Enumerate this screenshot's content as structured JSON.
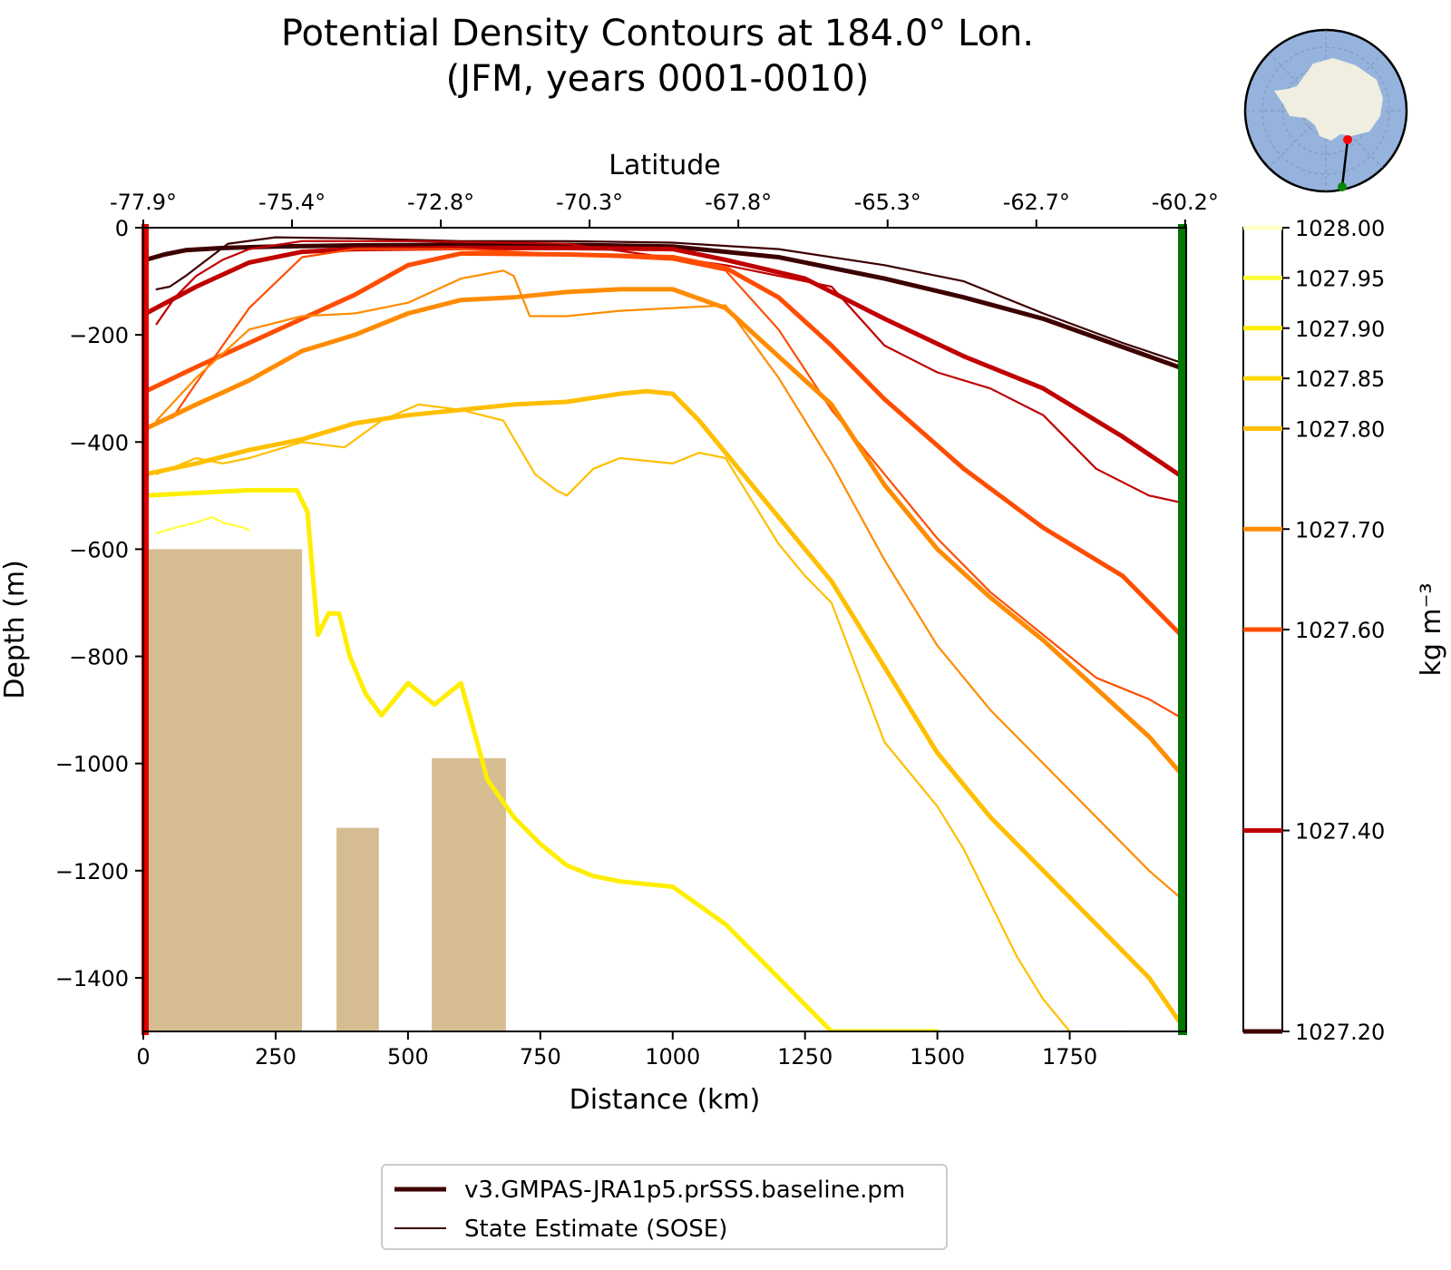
{
  "chart_data": {
    "type": "line",
    "title_line1": "Potential Density Contours at 184.0° Lon.",
    "title_line2": "(JFM, years 0001-0010)",
    "xlabel": "Distance (km)",
    "ylabel": "Depth (m)",
    "top_xlabel": "Latitude",
    "colorbar_label": "kg m⁻³",
    "xlim": [
      0,
      1970
    ],
    "ylim": [
      -1500,
      0
    ],
    "x_ticks": [
      0,
      250,
      500,
      750,
      1000,
      1250,
      1500,
      1750
    ],
    "y_ticks": [
      0,
      -200,
      -400,
      -600,
      -800,
      -1000,
      -1200,
      -1400
    ],
    "x_tick_labels": [
      "0",
      "250",
      "500",
      "750",
      "1000",
      "1250",
      "1500",
      "1750"
    ],
    "y_tick_labels": [
      "0",
      "−200",
      "−400",
      "−600",
      "−800",
      "−1000",
      "−1200",
      "−1400"
    ],
    "lat_ticks": [
      {
        "x": 0,
        "label": "-77.9°"
      },
      {
        "x": 281,
        "label": "-75.4°"
      },
      {
        "x": 562,
        "label": "-72.8°"
      },
      {
        "x": 843,
        "label": "-70.3°"
      },
      {
        "x": 1124,
        "label": "-67.8°"
      },
      {
        "x": 1406,
        "label": "-65.3°"
      },
      {
        "x": 1687,
        "label": "-62.7°"
      },
      {
        "x": 1968,
        "label": "-60.2°"
      }
    ],
    "contour_levels": [
      {
        "value": 1027.2,
        "label": "1027.20",
        "color": "#3d0000"
      },
      {
        "value": 1027.4,
        "label": "1027.40",
        "color": "#c00000"
      },
      {
        "value": 1027.6,
        "label": "1027.60",
        "color": "#ff4d00"
      },
      {
        "value": 1027.7,
        "label": "1027.70",
        "color": "#ff8c00"
      },
      {
        "value": 1027.8,
        "label": "1027.80",
        "color": "#ffbf00"
      },
      {
        "value": 1027.85,
        "label": "1027.85",
        "color": "#ffd800"
      },
      {
        "value": 1027.9,
        "label": "1027.90",
        "color": "#ffee00"
      },
      {
        "value": 1027.95,
        "label": "1027.95",
        "color": "#ffff3a"
      },
      {
        "value": 1028.0,
        "label": "1028.00",
        "color": "#ffffc8"
      }
    ],
    "series": [
      {
        "name": "v3.GMPAS-JRA1p5.prSSS.baseline.pm",
        "level": 1027.2,
        "style": "thick",
        "x": [
          5,
          40,
          80,
          150,
          250,
          400,
          600,
          800,
          1000,
          1200,
          1400,
          1550,
          1700,
          1970
        ],
        "y": [
          -60,
          -50,
          -42,
          -38,
          -35,
          -33,
          -32,
          -32,
          -35,
          -55,
          -95,
          -130,
          -170,
          -265
        ]
      },
      {
        "name": "State Estimate (SOSE)",
        "level": 1027.2,
        "style": "thin",
        "x": [
          25,
          50,
          80,
          120,
          160,
          250,
          400,
          600,
          800,
          1000,
          1200,
          1400,
          1550,
          1700,
          1850,
          1970
        ],
        "y": [
          -115,
          -110,
          -90,
          -60,
          -30,
          -18,
          -20,
          -25,
          -25,
          -28,
          -40,
          -70,
          -100,
          -160,
          -215,
          -255
        ]
      },
      {
        "level": 1027.4,
        "style": "thick",
        "x": [
          5,
          100,
          200,
          300,
          400,
          600,
          800,
          1000,
          1100,
          1250,
          1400,
          1550,
          1700,
          1850,
          1970
        ],
        "y": [
          -160,
          -110,
          -65,
          -45,
          -40,
          -38,
          -38,
          -40,
          -60,
          -95,
          -170,
          -240,
          -300,
          -390,
          -470
        ]
      },
      {
        "level": 1027.4,
        "style": "thin",
        "x": [
          25,
          60,
          100,
          150,
          200,
          300,
          500,
          800,
          1100,
          1300,
          1400,
          1500,
          1600,
          1700,
          1800,
          1900,
          1970
        ],
        "y": [
          -180,
          -130,
          -90,
          -60,
          -40,
          -25,
          -25,
          -30,
          -70,
          -110,
          -220,
          -270,
          -300,
          -350,
          -450,
          -500,
          -515
        ]
      },
      {
        "level": 1027.6,
        "style": "thick",
        "x": [
          5,
          100,
          200,
          300,
          400,
          500,
          600,
          800,
          1000,
          1100,
          1200,
          1300,
          1400,
          1550,
          1700,
          1850,
          1970
        ],
        "y": [
          -305,
          -260,
          -215,
          -170,
          -125,
          -70,
          -48,
          -50,
          -55,
          -75,
          -130,
          -220,
          -320,
          -450,
          -560,
          -650,
          -770
        ]
      },
      {
        "level": 1027.6,
        "style": "thin",
        "x": [
          55,
          100,
          150,
          200,
          300,
          400,
          600,
          800,
          1000,
          1100,
          1200,
          1300,
          1400,
          1500,
          1600,
          1700,
          1800,
          1900,
          1970
        ],
        "y": [
          -355,
          -290,
          -220,
          -150,
          -55,
          -40,
          -40,
          -50,
          -60,
          -80,
          -190,
          -340,
          -460,
          -580,
          -680,
          -760,
          -840,
          -880,
          -920
        ]
      },
      {
        "level": 1027.7,
        "style": "thick",
        "x": [
          5,
          100,
          200,
          300,
          400,
          500,
          600,
          700,
          800,
          900,
          1000,
          1100,
          1200,
          1300,
          1400,
          1500,
          1600,
          1700,
          1800,
          1900,
          1970
        ],
        "y": [
          -375,
          -330,
          -285,
          -230,
          -200,
          -160,
          -135,
          -130,
          -120,
          -115,
          -115,
          -150,
          -240,
          -330,
          -480,
          -600,
          -690,
          -770,
          -860,
          -950,
          -1030
        ]
      },
      {
        "level": 1027.7,
        "style": "thin",
        "x": [
          25,
          100,
          200,
          300,
          400,
          500,
          600,
          680,
          700,
          730,
          800,
          900,
          1000,
          1100,
          1200,
          1300,
          1400,
          1500,
          1600,
          1700,
          1800,
          1900,
          1970
        ],
        "y": [
          -360,
          -280,
          -190,
          -165,
          -160,
          -140,
          -95,
          -80,
          -90,
          -165,
          -165,
          -155,
          -150,
          -145,
          -280,
          -440,
          -620,
          -780,
          -900,
          -1000,
          -1100,
          -1200,
          -1260
        ]
      },
      {
        "level": 1027.8,
        "style": "thick",
        "x": [
          5,
          100,
          200,
          300,
          400,
          500,
          600,
          700,
          800,
          900,
          950,
          1000,
          1050,
          1100,
          1200,
          1300,
          1400,
          1500,
          1600,
          1700,
          1800,
          1900,
          1970
        ],
        "y": [
          -460,
          -440,
          -415,
          -395,
          -365,
          -350,
          -340,
          -330,
          -325,
          -310,
          -305,
          -310,
          -360,
          -420,
          -540,
          -660,
          -820,
          -980,
          -1100,
          -1200,
          -1300,
          -1400,
          -1500
        ]
      },
      {
        "level": 1027.8,
        "style": "thin",
        "x": [
          25,
          100,
          150,
          200,
          300,
          380,
          450,
          520,
          600,
          680,
          740,
          780,
          800,
          850,
          900,
          1000,
          1050,
          1100,
          1200,
          1250,
          1300,
          1400,
          1500,
          1550,
          1600,
          1650,
          1700,
          1750,
          1800,
          1860
        ],
        "y": [
          -460,
          -430,
          -440,
          -430,
          -400,
          -410,
          -360,
          -330,
          -340,
          -360,
          -460,
          -490,
          -500,
          -450,
          -430,
          -440,
          -420,
          -430,
          -590,
          -650,
          -700,
          -960,
          -1080,
          -1160,
          -1260,
          -1360,
          -1440,
          -1500,
          -1500,
          -1500
        ]
      },
      {
        "level": 1027.9,
        "style": "thick",
        "x": [
          5,
          100,
          200,
          290,
          300,
          310,
          330,
          350,
          370,
          390,
          420,
          450,
          500,
          550,
          600,
          650,
          700,
          750,
          800,
          850,
          900,
          1000,
          1100,
          1200,
          1300,
          1350,
          1400,
          1450,
          1500
        ],
        "y": [
          -500,
          -495,
          -490,
          -490,
          -510,
          -530,
          -760,
          -720,
          -720,
          -800,
          -870,
          -910,
          -850,
          -890,
          -850,
          -1030,
          -1100,
          -1150,
          -1190,
          -1210,
          -1220,
          -1230,
          -1300,
          -1400,
          -1500,
          -1500,
          -1500,
          -1500,
          -1500
        ]
      },
      {
        "level": 1027.95,
        "style": "thin",
        "x": [
          25,
          60,
          100,
          130,
          150,
          170,
          190,
          200
        ],
        "y": [
          -570,
          -560,
          -550,
          -540,
          -550,
          -555,
          -560,
          -565
        ]
      }
    ],
    "legend": [
      {
        "label": "v3.GMPAS-JRA1p5.prSSS.baseline.pm",
        "style": "thick",
        "color": "#3d0000"
      },
      {
        "label": "State Estimate (SOSE)",
        "style": "thin",
        "color": "#3d0000"
      }
    ],
    "bathymetry": [
      {
        "x": [
          5,
          300
        ],
        "y": [
          -600,
          -1500
        ]
      },
      {
        "x": [
          365,
          445
        ],
        "y": [
          -1120,
          -1500
        ]
      },
      {
        "x": [
          545,
          685
        ],
        "y": [
          -990,
          -1500
        ]
      }
    ],
    "bathymetry_color": "#d6bd91",
    "left_edge_color": "#e00000",
    "right_edge_color": "#007700"
  },
  "inset_map": {
    "ocean_color": "#95b3dd",
    "land_color": "#efeee0",
    "start_marker_color": "#ff0000",
    "end_marker_color": "#008800"
  }
}
